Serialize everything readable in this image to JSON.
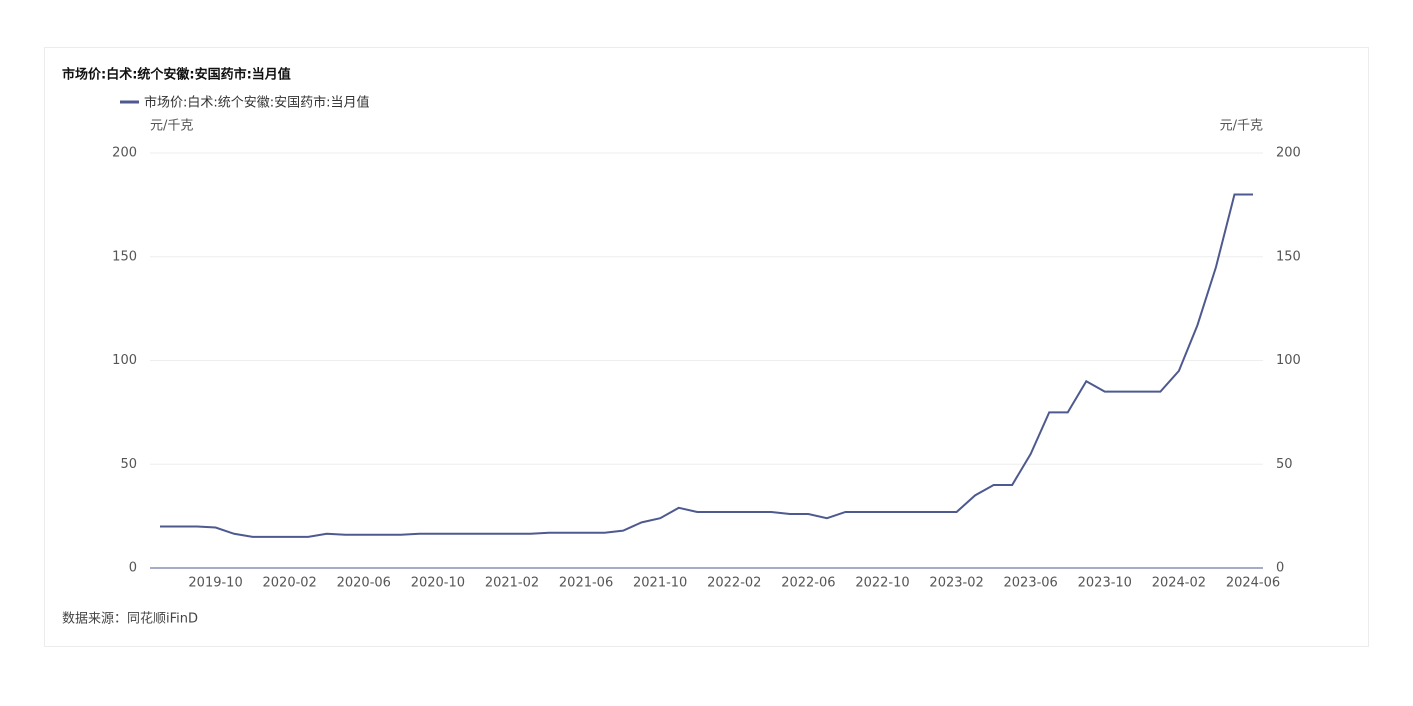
{
  "chart_data": {
    "type": "line",
    "title": "市场价:白术:统个安徽:安国药市:当月值",
    "y_label": "元/千克",
    "y2_label": "元/千克",
    "source": "数据来源：同花顺iFinD",
    "categories": [
      null,
      null,
      null,
      "2019-10",
      null,
      null,
      null,
      "2020-02",
      null,
      null,
      null,
      "2020-06",
      null,
      null,
      null,
      "2020-10",
      null,
      null,
      null,
      "2021-02",
      null,
      null,
      null,
      "2021-06",
      null,
      null,
      null,
      "2021-10",
      null,
      null,
      null,
      "2022-02",
      null,
      null,
      null,
      "2022-06",
      null,
      null,
      null,
      "2022-10",
      null,
      null,
      null,
      "2023-02",
      null,
      null,
      null,
      "2023-06",
      null,
      null,
      null,
      "2023-10",
      null,
      null,
      null,
      "2024-02",
      null,
      null,
      null,
      "2024-06"
    ],
    "series": [
      {
        "name": "市场价:白术:统个安徽:安国药市:当月值",
        "color": "#4e5a8f",
        "values": [
          20,
          20,
          20,
          19.5,
          16.5,
          15,
          15,
          15,
          15,
          16.5,
          16,
          16,
          16,
          16,
          16.5,
          16.5,
          16.5,
          16.5,
          16.5,
          16.5,
          16.5,
          17,
          17,
          17,
          17,
          18,
          22,
          24,
          29,
          27,
          27,
          27,
          27,
          27,
          26,
          26,
          24,
          27,
          27,
          27,
          27,
          27,
          27,
          27,
          35,
          40,
          40,
          55,
          75,
          75,
          90,
          85,
          85,
          85,
          85,
          95,
          117,
          145,
          180,
          180
        ]
      }
    ],
    "ylim": [
      0,
      200
    ],
    "yticks": [
      0,
      50,
      100,
      150,
      200
    ],
    "y2lim": [
      0,
      200
    ],
    "y2ticks": [
      0,
      50,
      100,
      150,
      200
    ],
    "grid": true
  }
}
